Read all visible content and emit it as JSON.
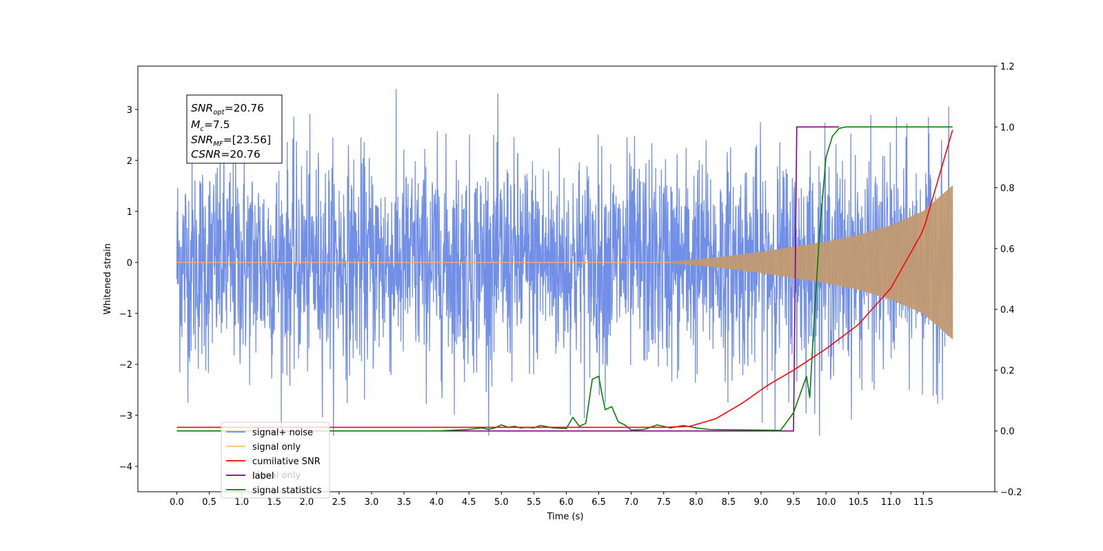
{
  "chart_data": {
    "type": "line",
    "xlabel": "Time (s)",
    "ylabel": "Whitened strain",
    "x_range": [
      -0.6,
      12.6
    ],
    "xticks": [
      "0.0",
      "0.5",
      "1.0",
      "1.5",
      "2.0",
      "2.5",
      "3.0",
      "3.5",
      "4.0",
      "4.5",
      "5.0",
      "5.5",
      "6.0",
      "6.5",
      "7.0",
      "7.5",
      "8.0",
      "8.5",
      "9.0",
      "9.5",
      "10.0",
      "10.5",
      "11.0",
      "11.5"
    ],
    "y_left": {
      "range": [
        -4.5,
        3.85
      ],
      "ticks": [
        "−4",
        "−3",
        "−2",
        "−1",
        "0",
        "1",
        "2",
        "3"
      ]
    },
    "y_right": {
      "range": [
        -0.2,
        1.2
      ],
      "ticks": [
        "−0.2",
        "0.0",
        "0.2",
        "0.4",
        "0.6",
        "0.8",
        "1.0",
        "1.2"
      ]
    },
    "annotation": {
      "snr_opt": {
        "base": "SNR",
        "sub": "opt",
        "value": "=20.76"
      },
      "mc": {
        "base": "M",
        "sub": "c",
        "value": "=7.5"
      },
      "snr_mf": {
        "base": "SNR",
        "sub": "MF",
        "value": "=[23.56]"
      },
      "csnr": {
        "base": "CSNR",
        "value": "=20.76"
      }
    },
    "legend": {
      "position": "lower-left",
      "entries": [
        {
          "label": "signal+ noise",
          "color": "#6a89e6"
        },
        {
          "label": "signal only",
          "color": "#ffbf70"
        },
        {
          "label": "cumilative SNR",
          "color": "#ff0000"
        },
        {
          "label": "label",
          "color": "#800080"
        },
        {
          "label": "signal statistics",
          "color": "#008000"
        }
      ],
      "hidden_text": "signal only"
    },
    "series": [
      {
        "name": "signal+ noise",
        "axis": "left",
        "color": "#6a89e6",
        "note": "dense noise band with t_start 0.0, t_end 11.95, typical amplitude about ±2 with spikes to ±3.4",
        "t_start": 0.0,
        "t_end": 11.95
      },
      {
        "name": "signal only",
        "axis": "left",
        "color": "#c19a72",
        "envelope_x": [
          0.0,
          7.5,
          8.0,
          8.5,
          9.0,
          9.5,
          10.0,
          10.5,
          11.0,
          11.5,
          11.95
        ],
        "envelope_y": [
          0.0,
          0.0,
          0.05,
          0.12,
          0.2,
          0.3,
          0.4,
          0.53,
          0.72,
          1.0,
          1.5
        ]
      },
      {
        "name": "cumilative SNR",
        "axis": "right",
        "color": "#ff0000",
        "x": [
          0.0,
          7.5,
          7.9,
          8.3,
          8.7,
          9.1,
          9.5,
          10.0,
          10.5,
          11.0,
          11.5,
          11.95
        ],
        "y": [
          0.012,
          0.012,
          0.015,
          0.04,
          0.09,
          0.15,
          0.2,
          0.27,
          0.35,
          0.47,
          0.66,
          0.99
        ]
      },
      {
        "name": "label",
        "axis": "right",
        "color": "#800080",
        "x": [
          0.0,
          9.5,
          9.55,
          10.2
        ],
        "y": [
          0.0,
          0.0,
          1.0,
          1.0
        ]
      },
      {
        "name": "signal statistics",
        "axis": "right",
        "color": "#008000",
        "x": [
          0.0,
          4.0,
          4.5,
          4.7,
          4.8,
          4.9,
          5.0,
          5.1,
          5.2,
          5.3,
          5.4,
          5.5,
          5.6,
          5.8,
          6.0,
          6.1,
          6.2,
          6.3,
          6.4,
          6.5,
          6.55,
          6.6,
          6.7,
          6.8,
          6.9,
          7.0,
          7.2,
          7.4,
          7.6,
          7.8,
          8.0,
          8.2,
          8.5,
          9.0,
          9.3,
          9.5,
          9.6,
          9.7,
          9.75,
          9.8,
          9.9,
          10.0,
          10.1,
          10.2,
          10.3,
          11.95
        ],
        "y": [
          0.0,
          0.0,
          0.005,
          0.01,
          0.005,
          0.01,
          0.02,
          0.012,
          0.015,
          0.01,
          0.012,
          0.01,
          0.018,
          0.01,
          0.008,
          0.045,
          0.015,
          0.025,
          0.17,
          0.18,
          0.12,
          0.07,
          0.08,
          0.03,
          0.02,
          0.003,
          0.005,
          0.02,
          0.01,
          0.018,
          0.01,
          0.005,
          0.004,
          0.003,
          0.002,
          0.06,
          0.12,
          0.18,
          0.11,
          0.3,
          0.65,
          0.9,
          0.97,
          0.995,
          1.0,
          1.0
        ]
      }
    ]
  }
}
